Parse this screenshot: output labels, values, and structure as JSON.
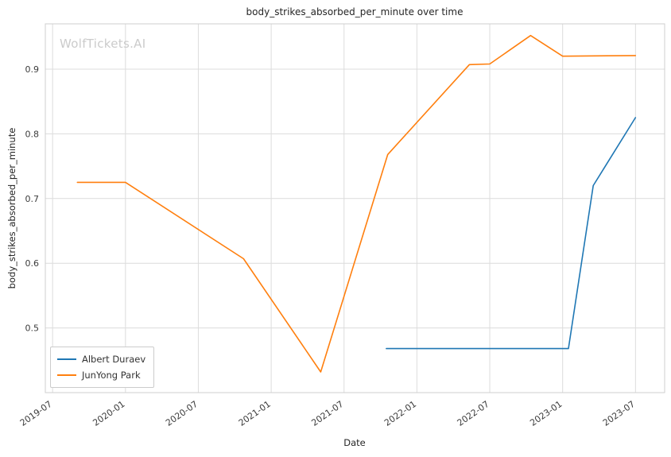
{
  "chart_data": {
    "type": "line",
    "title": "body_strikes_absorbed_per_minute over time",
    "xlabel": "Date",
    "ylabel": "body_strikes_absorbed_per_minute",
    "watermark": "WolfTickets.AI",
    "grid": true,
    "legend_position": "lower left",
    "xlim": [
      2019.45,
      2023.7
    ],
    "ylim": [
      0.4,
      0.97
    ],
    "xticks": [
      2019.5,
      2020.0,
      2020.5,
      2021.0,
      2021.5,
      2022.0,
      2022.5,
      2023.0,
      2023.5
    ],
    "xtick_labels": [
      "2019-07",
      "2020-01",
      "2020-07",
      "2021-01",
      "2021-07",
      "2022-01",
      "2022-07",
      "2023-01",
      "2023-07"
    ],
    "yticks": [
      0.5,
      0.6,
      0.7,
      0.8,
      0.9
    ],
    "series": [
      {
        "name": "Albert Duraev",
        "color": "#1f77b4",
        "x": [
          2021.79,
          2023.04,
          2023.21,
          2023.5
        ],
        "y": [
          0.468,
          0.468,
          0.72,
          0.825
        ]
      },
      {
        "name": "JunYong Park",
        "color": "#ff7f0e",
        "x": [
          2019.67,
          2020.0,
          2020.81,
          2021.34,
          2021.8,
          2022.36,
          2022.5,
          2022.78,
          2023.0,
          2023.5
        ],
        "y": [
          0.725,
          0.725,
          0.607,
          0.432,
          0.768,
          0.907,
          0.908,
          0.952,
          0.92,
          0.921
        ]
      }
    ]
  }
}
